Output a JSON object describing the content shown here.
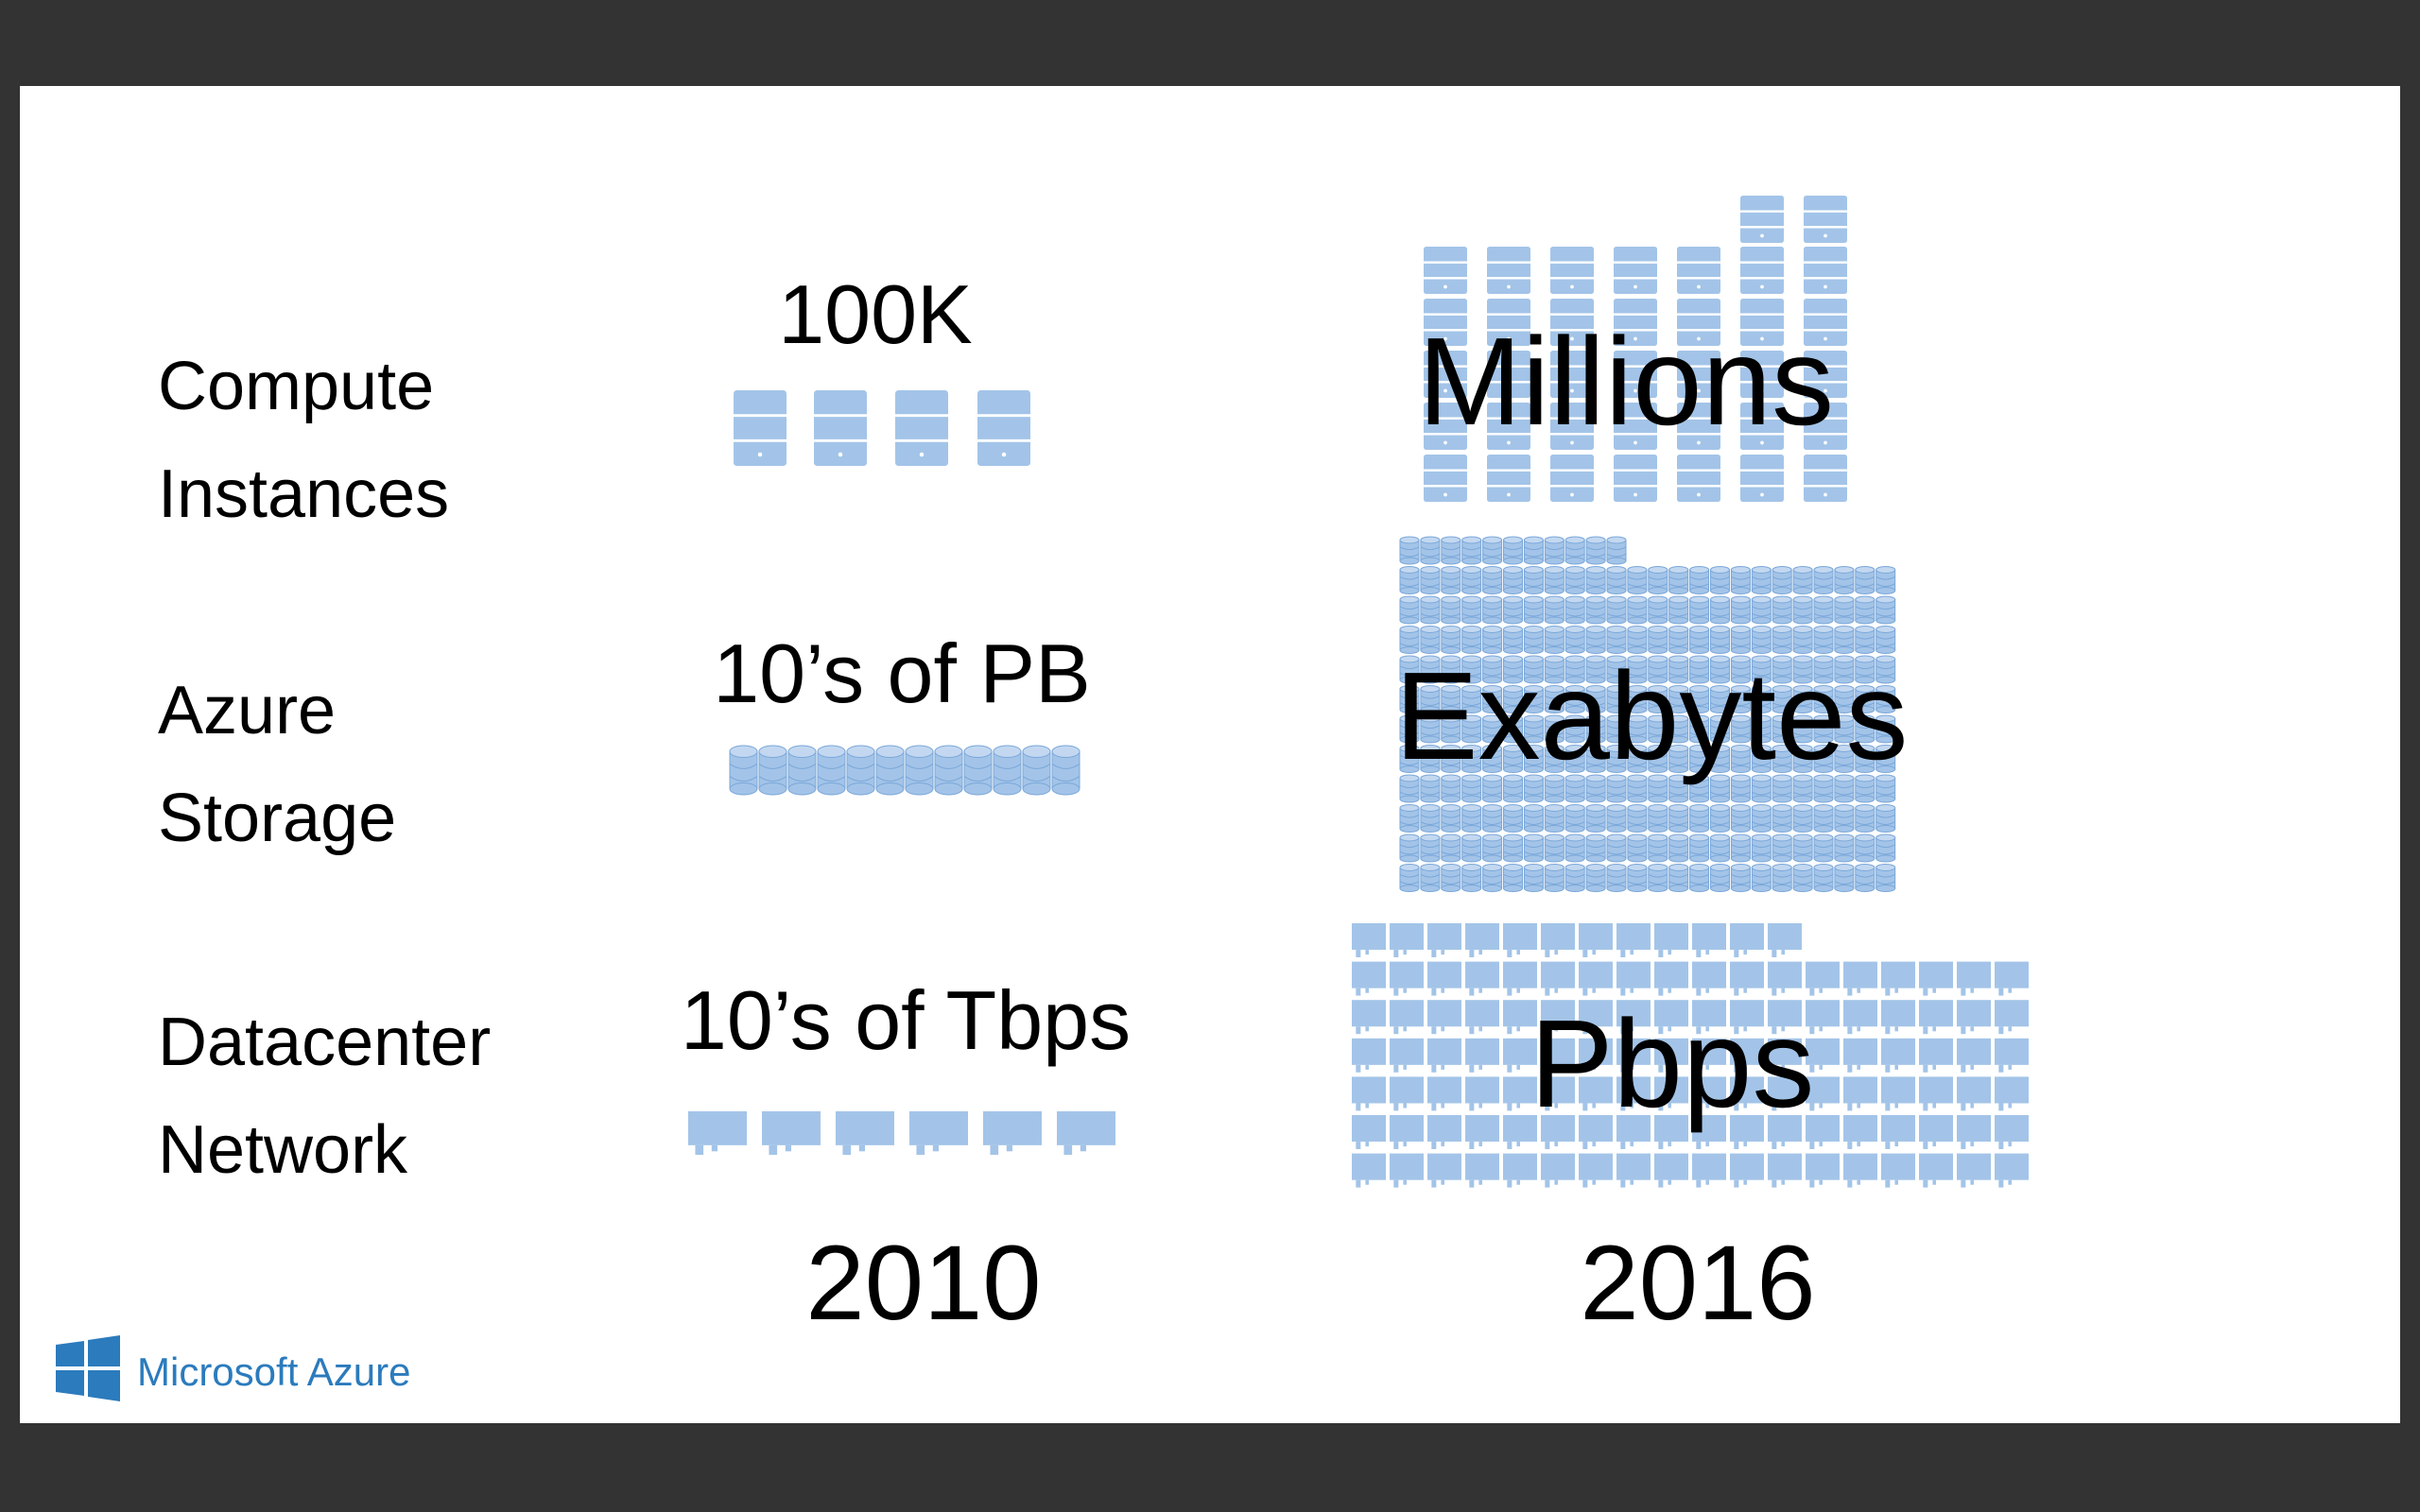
{
  "rows": [
    {
      "label": [
        "Compute",
        "Instances"
      ],
      "value_2010": "100K",
      "value_2016": "Millions"
    },
    {
      "label": [
        "Azure",
        "Storage"
      ],
      "value_2010": "10’s of PB",
      "value_2016": "Exabytes"
    },
    {
      "label": [
        "Datacenter",
        "Network"
      ],
      "value_2010": "10’s of Tbps",
      "value_2016": "Pbps"
    }
  ],
  "columns": [
    "2010",
    "2016"
  ],
  "logo": "Microsoft Azure"
}
